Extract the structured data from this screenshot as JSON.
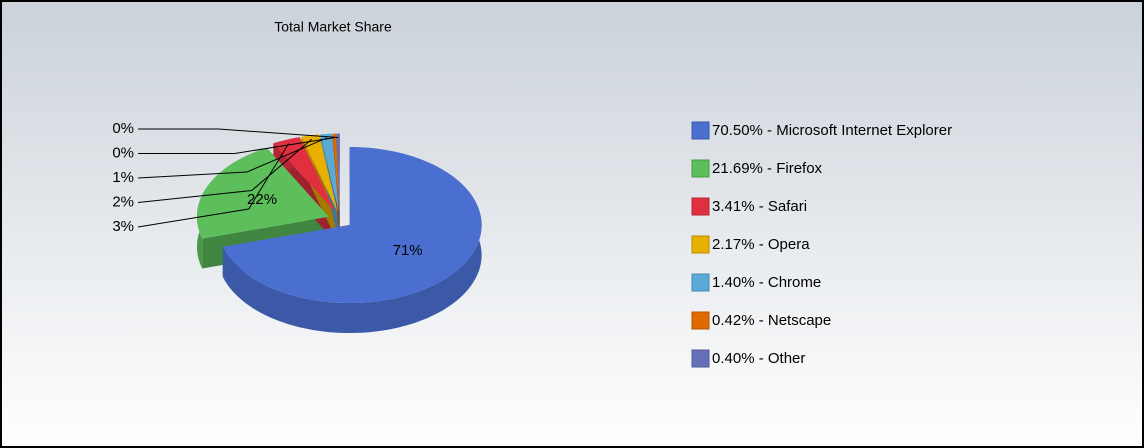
{
  "chart_data": {
    "type": "pie3d",
    "title": "Total Market Share",
    "categories": [
      "70.50% - Microsoft Internet Explorer",
      "21.69% - Firefox",
      "3.41% - Safari",
      "2.17% - Opera",
      "1.40% - Chrome",
      "0.42% - Netscape",
      "0.40% - Other"
    ],
    "values": [
      70.5,
      21.69,
      3.41,
      2.17,
      1.4,
      0.42,
      0.4
    ],
    "value_labels": [
      "71%",
      "22%",
      "3%",
      "2%",
      "1%",
      "0%",
      "0%"
    ],
    "colors": [
      "#4a6fd0",
      "#5cbf5c",
      "#e03040",
      "#e8b000",
      "#5aaad8",
      "#e06a00",
      "#6670b8"
    ],
    "legend": "right"
  }
}
